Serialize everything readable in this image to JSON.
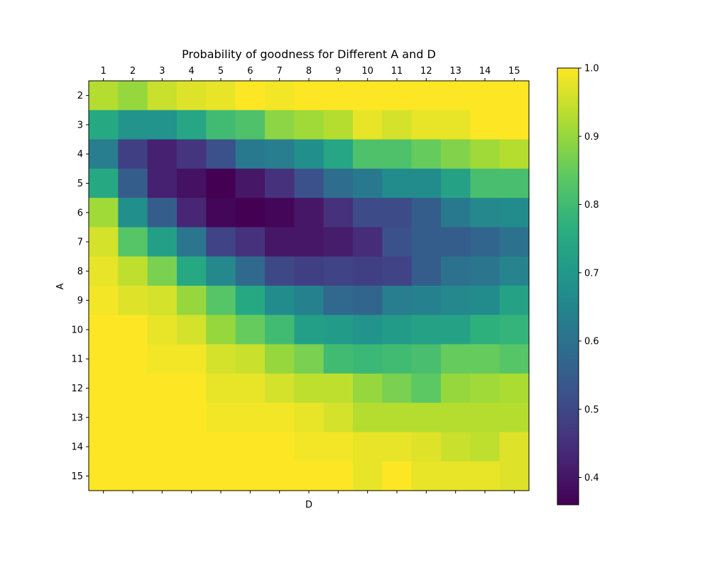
{
  "chart_data": {
    "type": "heatmap",
    "title": "Probability of goodness for Different A and D",
    "xlabel": "D",
    "ylabel": "A",
    "x": [
      "1",
      "2",
      "3",
      "4",
      "5",
      "6",
      "7",
      "8",
      "9",
      "10",
      "11",
      "12",
      "13",
      "14",
      "15"
    ],
    "y": [
      "2",
      "3",
      "4",
      "5",
      "6",
      "7",
      "8",
      "9",
      "10",
      "11",
      "12",
      "13",
      "14",
      "15"
    ],
    "xaxis_position": "top",
    "colormap": "viridis",
    "vmin": 0.36,
    "vmax": 1.0,
    "colorbar": {
      "ticks": [
        0.4,
        0.5,
        0.6,
        0.7,
        0.8,
        0.9,
        1.0
      ],
      "tick_labels": [
        "0.4",
        "0.5",
        "0.6",
        "0.7",
        "0.8",
        "0.9",
        "1.0"
      ],
      "position": "right"
    },
    "grid": false,
    "values": [
      [
        0.93,
        0.9,
        0.95,
        0.97,
        0.98,
        1.0,
        0.99,
        1.0,
        1.0,
        1.0,
        1.0,
        1.0,
        1.0,
        1.0,
        1.0
      ],
      [
        0.75,
        0.69,
        0.69,
        0.74,
        0.8,
        0.82,
        0.89,
        0.91,
        0.93,
        0.98,
        0.96,
        0.98,
        0.98,
        1.0,
        1.0
      ],
      [
        0.63,
        0.48,
        0.42,
        0.46,
        0.52,
        0.62,
        0.63,
        0.68,
        0.74,
        0.82,
        0.82,
        0.85,
        0.88,
        0.91,
        0.93
      ],
      [
        0.75,
        0.55,
        0.42,
        0.39,
        0.36,
        0.4,
        0.45,
        0.52,
        0.59,
        0.62,
        0.67,
        0.67,
        0.73,
        0.81,
        0.81
      ],
      [
        0.91,
        0.68,
        0.55,
        0.43,
        0.37,
        0.36,
        0.37,
        0.4,
        0.45,
        0.51,
        0.51,
        0.55,
        0.62,
        0.66,
        0.67
      ],
      [
        0.96,
        0.83,
        0.72,
        0.61,
        0.49,
        0.45,
        0.4,
        0.4,
        0.41,
        0.44,
        0.52,
        0.55,
        0.55,
        0.57,
        0.6
      ],
      [
        0.98,
        0.94,
        0.87,
        0.75,
        0.66,
        0.58,
        0.5,
        0.48,
        0.49,
        0.48,
        0.49,
        0.55,
        0.6,
        0.61,
        0.65
      ],
      [
        0.99,
        0.97,
        0.96,
        0.9,
        0.83,
        0.75,
        0.67,
        0.64,
        0.58,
        0.57,
        0.63,
        0.64,
        0.66,
        0.67,
        0.73
      ],
      [
        1.0,
        1.0,
        0.98,
        0.96,
        0.9,
        0.85,
        0.8,
        0.72,
        0.71,
        0.69,
        0.71,
        0.73,
        0.73,
        0.77,
        0.78
      ],
      [
        1.0,
        1.0,
        0.99,
        0.99,
        0.96,
        0.95,
        0.9,
        0.87,
        0.8,
        0.79,
        0.8,
        0.81,
        0.85,
        0.85,
        0.83
      ],
      [
        1.0,
        1.0,
        1.0,
        1.0,
        0.98,
        0.98,
        0.96,
        0.94,
        0.94,
        0.9,
        0.87,
        0.84,
        0.9,
        0.91,
        0.92
      ],
      [
        1.0,
        1.0,
        1.0,
        1.0,
        0.99,
        0.99,
        0.99,
        0.98,
        0.96,
        0.93,
        0.93,
        0.93,
        0.93,
        0.93,
        0.93
      ],
      [
        1.0,
        1.0,
        1.0,
        1.0,
        1.0,
        1.0,
        1.0,
        0.99,
        0.99,
        0.98,
        0.98,
        0.97,
        0.95,
        0.94,
        0.97
      ],
      [
        1.0,
        1.0,
        1.0,
        1.0,
        1.0,
        1.0,
        1.0,
        1.0,
        1.0,
        0.98,
        1.0,
        0.98,
        0.98,
        0.98,
        0.97
      ]
    ]
  }
}
